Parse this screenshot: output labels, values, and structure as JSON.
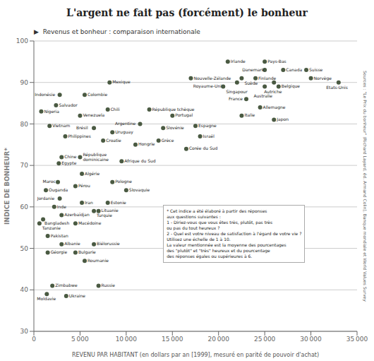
{
  "chart_data": {
    "type": "scatter",
    "title": "L'argent ne fait pas (forcément) le bonheur",
    "subtitle": "▶  Revenus et bonheur : comparaison internationale",
    "xlabel": "REVENU PAR HABITANT (en dollars par an [1999], mesuré en parité de pouvoir d'achat)",
    "ylabel": "INDICE DE BONHEUR*",
    "annotations": [
      "* Cet indice a été élaboré à partir des réponses\naux questions suivantes :\n1 - Diriez-vous que vous êtes très, plutôt, pas très\nou pas du tout heureux ?\n2 - Quel est votre niveau de satisfaction à l'égard de votre vie ?\nUtilisez une échelle de 1 à 10.\nLa valeur mentionnée est la moyenne des pourcentages\ndes \"plutôt\" et \"très\" heureux et du pourcentage\ndes réponses égales ou supérieures à 6.",
      "Sources : \"Le Prix du bonheur\" (Richard Layard, éd. Armand Colin), Banque mondiale et World Values Survey"
    ],
    "color": "#4a5a42",
    "grid": "y",
    "xlim": [
      0,
      35000
    ],
    "ylim": [
      30,
      100
    ],
    "xticks": [
      0,
      {
        "value": 5000,
        "label": "5 000"
      },
      {
        "value": 10000,
        "label": "10 000"
      },
      {
        "value": 15000,
        "label": "15 000"
      },
      {
        "value": 20000,
        "label": "20 000"
      },
      {
        "value": 25000,
        "label": "25 000"
      },
      {
        "value": 30000,
        "label": "30 000"
      },
      {
        "value": 35000,
        "label": "35 000"
      }
    ],
    "yticks": [
      30,
      40,
      50,
      60,
      70,
      80,
      90,
      100
    ],
    "labels": [
      "Indonésie",
      "Nigeria",
      "Salvador",
      "Colombie",
      "Mexique",
      "Vietnam",
      "Venezuela",
      "Chili",
      "Philippines",
      "Brésil",
      "Uruguay",
      "Croatie",
      "République tchèque",
      "Argentine",
      "Slovénie",
      "Portugal",
      "Espagne",
      "Hongrie",
      "Grèce",
      "Israël",
      "Corée du Sud",
      "Chine",
      "Egypte",
      "République\ndominicaine",
      "Algérie",
      "Afrique du Sud",
      "Maroc",
      "Ouganda",
      "Pérou",
      "Pologne",
      "Jordanie",
      "Iran",
      "Estonie",
      "Slovaquie",
      "Lituanie",
      "Inde",
      "Azerbaïdjan",
      "Turquie",
      "Bangladesh",
      "Tanzanie",
      "Macédoine",
      "Pakistan",
      "Albanie",
      "Biélorussie",
      "Géorgie",
      "Bulgarie",
      "Roumanie",
      "Zimbabwe",
      "Russie",
      "Moldavie",
      "Ukraine",
      "Nouvelle-Zélande",
      "Irlande",
      "Pays-Bas",
      "Danemark",
      "Canada",
      "Suisse",
      "Suède",
      "Finlande",
      "Norvège",
      "Singapour",
      "Autriche",
      "Royaume-Uni",
      "Australie",
      "Belgique",
      "Etats-Unis",
      "France",
      "Allemagne",
      "Italie",
      "Japon"
    ],
    "x": [
      2800,
      800,
      2400,
      5500,
      8200,
      1700,
      5000,
      8000,
      3400,
      6500,
      8500,
      7500,
      12500,
      11500,
      14000,
      15000,
      17500,
      11000,
      13500,
      18000,
      16500,
      3000,
      2700,
      5000,
      5200,
      9500,
      2600,
      1300,
      4500,
      8500,
      2800,
      5200,
      8000,
      10000,
      7000,
      2200,
      3000,
      6500,
      1000,
      600,
      4500,
      1500,
      3000,
      6500,
      1500,
      4500,
      5500,
      2000,
      7000,
      1400,
      3500,
      17000,
      21000,
      25000,
      25000,
      27000,
      29500,
      22500,
      24000,
      30000,
      22000,
      26000,
      20500,
      25000,
      26500,
      33000,
      23000,
      24500,
      22500,
      26000
    ],
    "values": [
      87,
      83,
      84.5,
      87,
      90,
      79.5,
      82,
      83.5,
      77,
      79,
      78,
      76,
      83.5,
      80,
      79,
      82,
      79.5,
      75,
      76,
      77,
      74,
      72,
      70.5,
      72,
      68,
      71,
      66,
      64,
      65,
      66,
      62,
      61,
      61,
      64,
      59,
      60,
      58,
      59,
      57,
      56,
      56,
      53,
      51,
      51,
      49,
      49,
      47,
      41,
      41,
      39,
      38.5,
      91,
      95,
      95,
      93,
      93,
      93,
      91,
      91,
      91,
      90,
      90,
      89,
      89,
      89,
      90,
      86,
      84,
      82,
      81
    ]
  }
}
